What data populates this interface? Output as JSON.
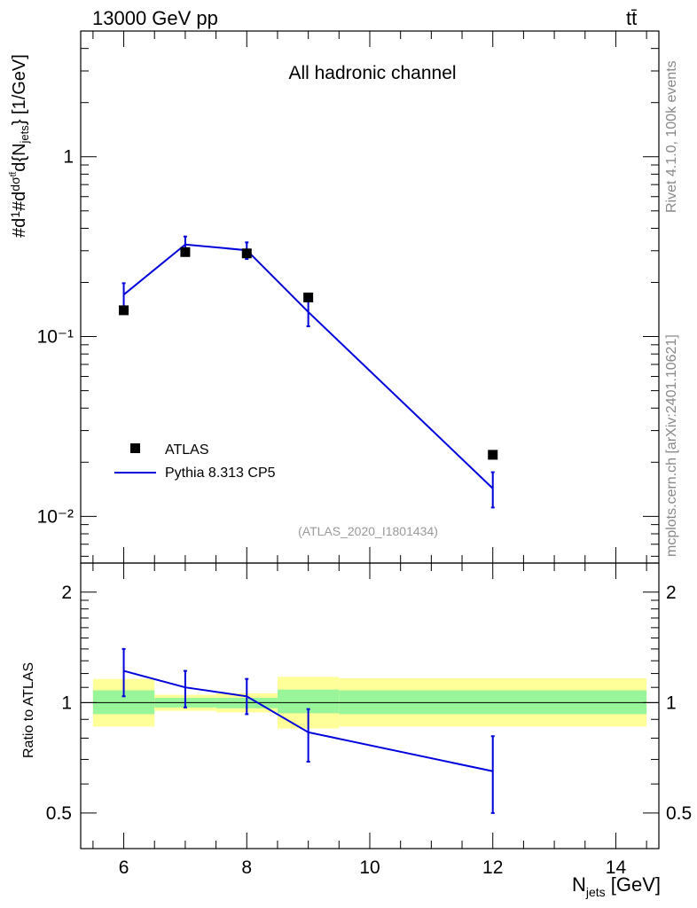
{
  "header": {
    "energy_label": "13000 GeV pp",
    "process_label": "tt̄"
  },
  "side": {
    "rivet_label": "Rivet 4.1.0,  100k events",
    "source_label": "mcplots.cern.ch [arXiv:2401.10621]"
  },
  "chart_data": [
    {
      "type": "scatter",
      "title": "All hadronic channel",
      "analysis_label": "(ATLAS_2020_I1801434)",
      "xlabel": "N_jets [GeV]",
      "ylabel": "#d1/σ#dd σ^tt̄/d{N_jets} [1/GeV]",
      "yscale": "log",
      "xlim": [
        5.3,
        14.7
      ],
      "ylim": [
        0.0055,
        5.0
      ],
      "y_ticks": [
        {
          "value": 0.01,
          "label": "10⁻²"
        },
        {
          "value": 0.1,
          "label": "10⁻¹"
        },
        {
          "value": 1,
          "label": "1"
        }
      ],
      "legend_position": "bottom-left",
      "series": [
        {
          "name": "ATLAS",
          "style": "markers",
          "color": "#000000",
          "x": [
            6,
            7,
            8,
            9,
            12
          ],
          "y": [
            0.14,
            0.295,
            0.29,
            0.165,
            0.022
          ]
        },
        {
          "name": "Pythia 8.313 CP5",
          "style": "line",
          "color": "#0000dd",
          "x": [
            6,
            7,
            8,
            9,
            12
          ],
          "y": [
            0.171,
            0.325,
            0.302,
            0.137,
            0.0143
          ],
          "err_low": [
            0.146,
            0.29,
            0.27,
            0.114,
            0.0112
          ],
          "err_high": [
            0.198,
            0.36,
            0.334,
            0.16,
            0.0176
          ]
        }
      ]
    },
    {
      "type": "line",
      "ylabel": "Ratio to ATLAS",
      "xlabel": "N_jets [GeV]",
      "yscale": "log",
      "xlim": [
        5.3,
        14.7
      ],
      "ylim": [
        0.4,
        2.4
      ],
      "y_ticks": [
        {
          "value": 0.5,
          "label": "0.5"
        },
        {
          "value": 1,
          "label": "1"
        },
        {
          "value": 2,
          "label": "2"
        }
      ],
      "x_ticks": [
        6,
        8,
        10,
        12,
        14
      ],
      "reference_line": 1,
      "bands": [
        {
          "x_low": 5.5,
          "x_high": 6.5,
          "inner": [
            0.93,
            1.08
          ],
          "outer": [
            0.86,
            1.16
          ]
        },
        {
          "x_low": 6.5,
          "x_high": 7.5,
          "inner": [
            0.97,
            1.03
          ],
          "outer": [
            0.95,
            1.05
          ]
        },
        {
          "x_low": 7.5,
          "x_high": 8.5,
          "inner": [
            0.965,
            1.03
          ],
          "outer": [
            0.94,
            1.06
          ]
        },
        {
          "x_low": 8.5,
          "x_high": 9.5,
          "inner": [
            0.935,
            1.085
          ],
          "outer": [
            0.85,
            1.175
          ]
        },
        {
          "x_low": 9.5,
          "x_high": 14.5,
          "inner": [
            0.93,
            1.08
          ],
          "outer": [
            0.86,
            1.165
          ]
        }
      ],
      "series": [
        {
          "name": "Pythia 8.313 CP5",
          "color": "#0000dd",
          "x": [
            6,
            7,
            8,
            9,
            12
          ],
          "y": [
            1.22,
            1.1,
            1.04,
            0.83,
            0.65
          ],
          "err_low": [
            1.04,
            0.97,
            0.93,
            0.69,
            0.5
          ],
          "err_high": [
            1.4,
            1.22,
            1.16,
            0.96,
            0.81
          ]
        }
      ]
    }
  ]
}
